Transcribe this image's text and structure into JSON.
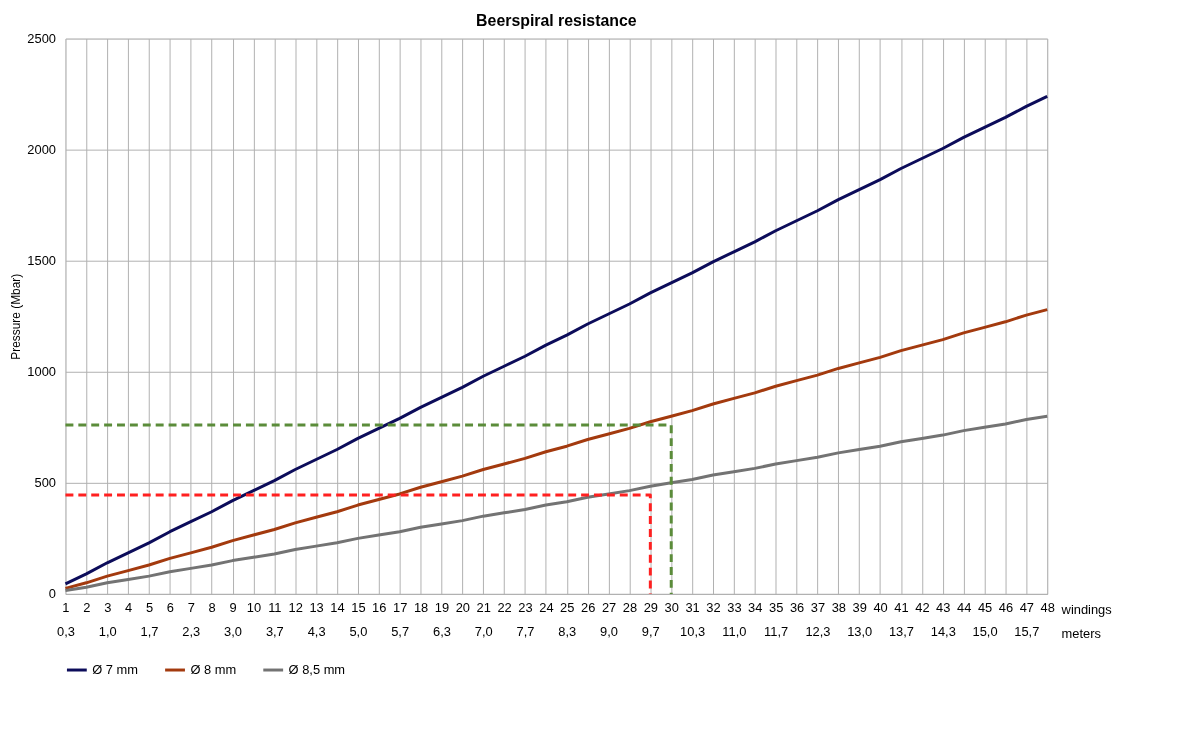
{
  "chart_data": {
    "type": "line",
    "title": "Beerspiral resistance",
    "ylabel": "Pressure (Mbar)",
    "xlabel": "windings\nmeters",
    "categories": [
      "1\n0,3",
      "2",
      "3\n1,0",
      "4",
      "5\n1,7",
      "6",
      "7\n2,3",
      "8",
      "9\n3,0",
      "10",
      "11\n3,7",
      "12",
      "13\n4,3",
      "14",
      "15\n5,0",
      "16",
      "17\n5,7",
      "18",
      "19\n6,3",
      "20",
      "21\n7,0",
      "22",
      "23\n7,7",
      "24",
      "25\n8,3",
      "26",
      "27\n9,0",
      "28",
      "29\n9,7",
      "30",
      "31\n10,3",
      "32",
      "33\n11,0",
      "34",
      "35\n11,7",
      "36",
      "37\n12,3",
      "38",
      "39\n13,0",
      "40",
      "41\n13,7",
      "42",
      "43\n14,3",
      "44",
      "45\n15,0",
      "46",
      "47\n15,7",
      "48"
    ],
    "series": [
      {
        "name": "Ø 7 mm",
        "color": "#0c0c5a",
        "values": [
          45,
          90,
          140,
          185,
          230,
          280,
          325,
          370,
          420,
          465,
          510,
          560,
          605,
          650,
          700,
          745,
          790,
          840,
          885,
          930,
          980,
          1025,
          1070,
          1120,
          1165,
          1215,
          1260,
          1305,
          1355,
          1400,
          1445,
          1495,
          1540,
          1585,
          1635,
          1680,
          1725,
          1775,
          1820,
          1865,
          1915,
          1960,
          2005,
          2055,
          2100,
          2145,
          2195,
          2240
        ]
      },
      {
        "name": "Ø 8 mm",
        "color": "#a33a0e",
        "values": [
          25,
          50,
          80,
          105,
          130,
          160,
          185,
          210,
          240,
          265,
          290,
          320,
          345,
          370,
          400,
          425,
          450,
          480,
          505,
          530,
          560,
          585,
          610,
          640,
          665,
          695,
          720,
          745,
          775,
          800,
          825,
          855,
          880,
          905,
          935,
          960,
          985,
          1015,
          1040,
          1065,
          1095,
          1120,
          1145,
          1175,
          1200,
          1225,
          1255,
          1280
        ]
      },
      {
        "name": "Ø 8,5 mm",
        "color": "#737373",
        "values": [
          15,
          30,
          50,
          65,
          80,
          100,
          115,
          130,
          150,
          165,
          180,
          200,
          215,
          230,
          250,
          265,
          280,
          300,
          315,
          330,
          350,
          365,
          380,
          400,
          415,
          435,
          450,
          465,
          485,
          500,
          515,
          535,
          550,
          565,
          585,
          600,
          615,
          635,
          650,
          665,
          685,
          700,
          715,
          735,
          750,
          765,
          785,
          800
        ]
      },
      {
        "color": "#5b8c3a",
        "line_style": "dashed",
        "x": [
          "1\n0,3",
          "30",
          "30"
        ],
        "values": [
          760,
          760,
          0
        ]
      },
      {
        "color": "#ff2020",
        "line_style": "dashed",
        "x": [
          "1\n0,3",
          "29\n9,7",
          "29\n9,7"
        ],
        "values": [
          445,
          445,
          0
        ]
      }
    ],
    "ylim": [
      0,
      2500
    ],
    "yticks": [
      0,
      500,
      1000,
      1500,
      2000,
      2500
    ],
    "grid": true,
    "legend": "bottom",
    "line_style": "solid"
  }
}
